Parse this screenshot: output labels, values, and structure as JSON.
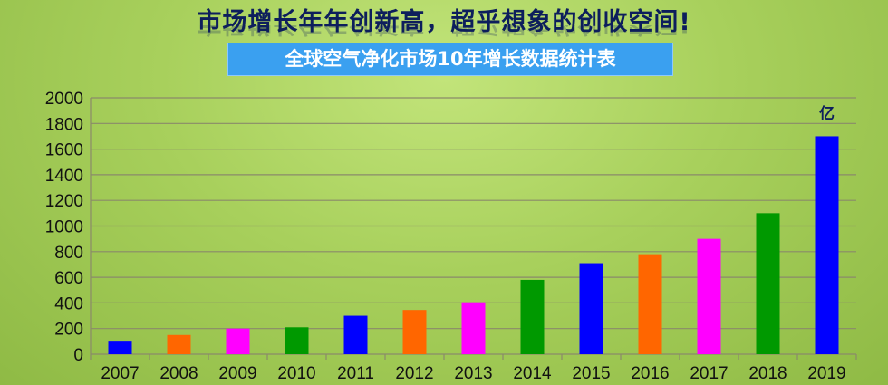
{
  "headline": "市场增长年年创新高，超乎想象的创收空间!",
  "chart_data": {
    "type": "bar",
    "title": "全球空气净化市场10年增长数据统计表",
    "unit_label": "亿",
    "categories": [
      "2007",
      "2008",
      "2009",
      "2010",
      "2011",
      "2012",
      "2013",
      "2014",
      "2015",
      "2016",
      "2017",
      "2018",
      "2019"
    ],
    "values": [
      105,
      150,
      200,
      210,
      300,
      345,
      405,
      580,
      710,
      780,
      900,
      1100,
      1700
    ],
    "colors": [
      "#0000ff",
      "#ff6600",
      "#ff00ff",
      "#009900",
      "#0000ff",
      "#ff6600",
      "#ff00ff",
      "#009900",
      "#0000ff",
      "#ff6600",
      "#ff00ff",
      "#009900",
      "#0000ff"
    ],
    "ylim": [
      0,
      2000
    ],
    "yticks": [
      0,
      200,
      400,
      600,
      800,
      1000,
      1200,
      1400,
      1600,
      1800,
      2000
    ],
    "grid": true,
    "legend": "none"
  }
}
